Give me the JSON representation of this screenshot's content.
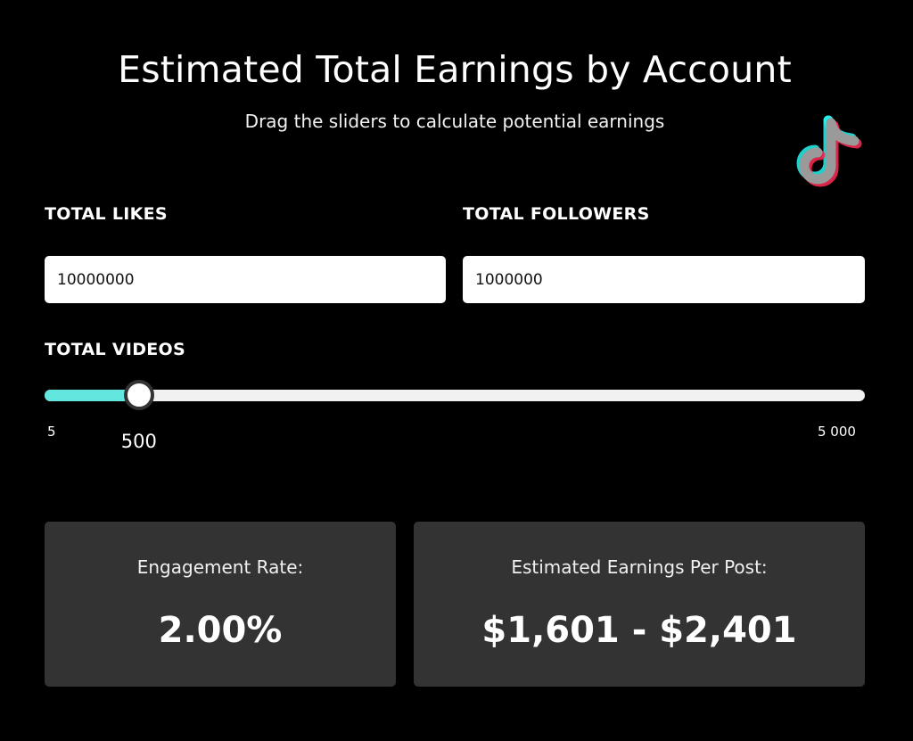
{
  "header": {
    "title": "Estimated Total Earnings by Account",
    "subtitle": "Drag the sliders to calculate potential earnings",
    "logo_icon": "tiktok-logo-icon"
  },
  "inputs": {
    "likes": {
      "label": "TOTAL LIKES",
      "value": "10000000"
    },
    "followers": {
      "label": "TOTAL FOLLOWERS",
      "value": "1000000"
    }
  },
  "videos_slider": {
    "label": "TOTAL VIDEOS",
    "min_label": "5",
    "max_label": "5 000",
    "value_label": "500",
    "value": 500,
    "min": 5,
    "max": 5000,
    "fill_fraction": 0.115
  },
  "results": {
    "engagement": {
      "label": "Engagement Rate:",
      "value": "2.00%"
    },
    "earnings": {
      "label": "Estimated Earnings Per Post:",
      "value": "$1,601 - $2,401"
    }
  },
  "colors": {
    "background": "#000000",
    "slider_fill": "#62e6de",
    "card_background": "#333333",
    "logo_cyan": "#25f4ee",
    "logo_red": "#fe2c55"
  }
}
